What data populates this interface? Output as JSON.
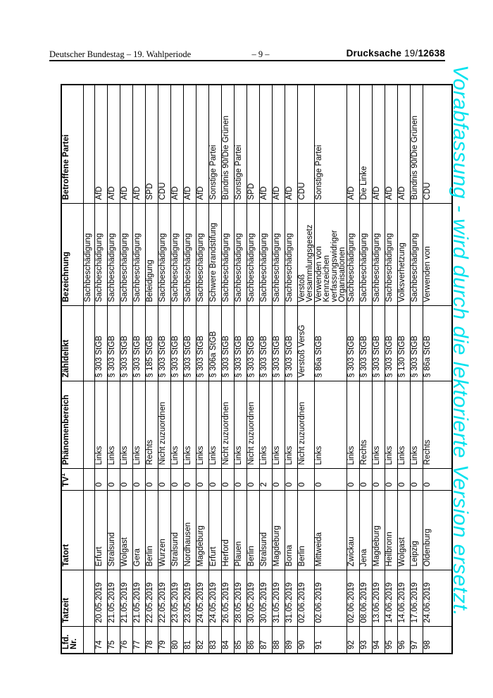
{
  "page_header": {
    "left": "Deutscher Bundestag – 19. Wahlperiode",
    "center": "– 9 –",
    "right_label": "Drucksache",
    "right_prefix": "19/",
    "right_number": "12638"
  },
  "watermark": {
    "text": "Vorabfassung - wird durch die lektorierte Version ersetzt.",
    "color": "#00e2ee"
  },
  "table": {
    "headers": {
      "nr": "Lfd.\nNr.",
      "tatzeit": "Tatzeit",
      "tatort": "Tatort",
      "tv": "TV",
      "tv_sup": "1",
      "phaenomenbereich": "Phänomenbereich",
      "zaehldelikt": "Zähldelikt",
      "bezeichnung": "Bezeichnung",
      "partei": "Betroffene Partei"
    },
    "rows": [
      {
        "nr": "",
        "tatzeit": "",
        "tatort": "",
        "tv": "",
        "phaenomenbereich": "",
        "zaehldelikt": "",
        "bezeichnung": "Sachbeschädigung",
        "partei": ""
      },
      {
        "nr": "74",
        "tatzeit": "20.05.2019",
        "tatort": "Erfurt",
        "tv": "0",
        "phaenomenbereich": "Links",
        "zaehldelikt": "§ 303 StGB",
        "bezeichnung": "Sachbeschädigung",
        "partei": "AfD"
      },
      {
        "nr": "75",
        "tatzeit": "21.05.2019",
        "tatort": "Stralsund",
        "tv": "0",
        "phaenomenbereich": "Links",
        "zaehldelikt": "§ 303 StGB",
        "bezeichnung": "Sachbeschädigung",
        "partei": "AfD"
      },
      {
        "nr": "76",
        "tatzeit": "21.05.2019",
        "tatort": "Wolgast",
        "tv": "0",
        "phaenomenbereich": "Links",
        "zaehldelikt": "§ 303 StGB",
        "bezeichnung": "Sachbeschädigung",
        "partei": "AfD"
      },
      {
        "nr": "77",
        "tatzeit": "21.05.2019",
        "tatort": "Gera",
        "tv": "0",
        "phaenomenbereich": "Links",
        "zaehldelikt": "§ 303 StGB",
        "bezeichnung": "Sachbeschädigung",
        "partei": "AfD"
      },
      {
        "nr": "78",
        "tatzeit": "22.05.2019",
        "tatort": "Berlin",
        "tv": "0",
        "phaenomenbereich": "Rechts",
        "zaehldelikt": "§ 185 StGB",
        "bezeichnung": "Beleidigung",
        "partei": "SPD"
      },
      {
        "nr": "79",
        "tatzeit": "22.05.2019",
        "tatort": "Wurzen",
        "tv": "0",
        "phaenomenbereich": "Nicht zuzuordnen",
        "zaehldelikt": "§ 303 StGB",
        "bezeichnung": "Sachbeschädigung",
        "partei": "CDU"
      },
      {
        "nr": "80",
        "tatzeit": "23.05.2019",
        "tatort": "Stralsund",
        "tv": "0",
        "phaenomenbereich": "Links",
        "zaehldelikt": "§ 303 StGB",
        "bezeichnung": "Sachbeschädigung",
        "partei": "AfD"
      },
      {
        "nr": "81",
        "tatzeit": "23.05.2019",
        "tatort": "Nordhausen",
        "tv": "0",
        "phaenomenbereich": "Links",
        "zaehldelikt": "§ 303 StGB",
        "bezeichnung": "Sachbeschädigung",
        "partei": "AfD"
      },
      {
        "nr": "82",
        "tatzeit": "24.05.2019",
        "tatort": "Magdeburg",
        "tv": "0",
        "phaenomenbereich": "Links",
        "zaehldelikt": "§ 303 StGB",
        "bezeichnung": "Sachbeschädigung",
        "partei": "AfD"
      },
      {
        "nr": "83",
        "tatzeit": "24.05.2019",
        "tatort": "Erfurt",
        "tv": "0",
        "phaenomenbereich": "Links",
        "zaehldelikt": "§ 306a StGB",
        "bezeichnung": "Schwere Brandstifung",
        "partei": "Sonstige Partei"
      },
      {
        "nr": "84",
        "tatzeit": "26.05.2019",
        "tatort": "Herford",
        "tv": "0",
        "phaenomenbereich": "Nicht zuzuordnen",
        "zaehldelikt": "§ 303 StGB",
        "bezeichnung": "Sachbeschädigung",
        "partei": "Bündnis 90/Die Grünen"
      },
      {
        "nr": "85",
        "tatzeit": "28.05.2019",
        "tatort": "Plauen",
        "tv": "0",
        "phaenomenbereich": "Links",
        "zaehldelikt": "§ 303 StGB",
        "bezeichnung": "Sachbeschädigung",
        "partei": "Sonstige Partei"
      },
      {
        "nr": "86",
        "tatzeit": "30.05.2019",
        "tatort": "Berlin",
        "tv": "0",
        "phaenomenbereich": "Nicht zuzuordnen",
        "zaehldelikt": "§ 303 StGB",
        "bezeichnung": "Sachbeschädigung",
        "partei": "SPD"
      },
      {
        "nr": "87",
        "tatzeit": "30.05.2019",
        "tatort": "Stralsund",
        "tv": "2",
        "phaenomenbereich": "Links",
        "zaehldelikt": "§ 303 StGB",
        "bezeichnung": "Sachbeschädigung",
        "partei": "AfD"
      },
      {
        "nr": "88",
        "tatzeit": "31.05.2019",
        "tatort": "Magdeburg",
        "tv": "0",
        "phaenomenbereich": "Links",
        "zaehldelikt": "§ 303 StGB",
        "bezeichnung": "Sachbeschädigung",
        "partei": "AfD"
      },
      {
        "nr": "89",
        "tatzeit": "31.05.2019",
        "tatort": "Borna",
        "tv": "0",
        "phaenomenbereich": "Links",
        "zaehldelikt": "§ 303 StGB",
        "bezeichnung": "Sachbeschädigung",
        "partei": "AfD"
      },
      {
        "nr": "90",
        "tatzeit": "02.06.2019",
        "tatort": "Berlin",
        "tv": "0",
        "phaenomenbereich": "Nicht zuzuordnen",
        "zaehldelikt": "Verstoß VersG",
        "bezeichnung": "Verstoß\nVersammlungsgesetz",
        "partei": "CDU"
      },
      {
        "nr": "91",
        "tatzeit": "02.06.2019",
        "tatort": "Mittweida",
        "tv": "0",
        "phaenomenbereich": "Links",
        "zaehldelikt": "§ 86a StGB",
        "bezeichnung": "Verwenden von\nKennzeichen\nverfassungswidriger\nOrganisationen",
        "partei": "Sonstige Partei"
      },
      {
        "nr": "92",
        "tatzeit": "02.06.2019",
        "tatort": "Zwickau",
        "tv": "0",
        "phaenomenbereich": "Links",
        "zaehldelikt": "§ 303 StGB",
        "bezeichnung": "Sachbeschädigung",
        "partei": "AfD"
      },
      {
        "nr": "93",
        "tatzeit": "08.06.2019",
        "tatort": "Jena",
        "tv": "0",
        "phaenomenbereich": "Rechts",
        "zaehldelikt": "§ 303 StGB",
        "bezeichnung": "Sachbeschädigung",
        "partei": "Die Linke"
      },
      {
        "nr": "94",
        "tatzeit": "13.06.2019",
        "tatort": "Magdeburg",
        "tv": "0",
        "phaenomenbereich": "Links",
        "zaehldelikt": "§ 303 StGB",
        "bezeichnung": "Sachbeschädigung",
        "partei": "AfD"
      },
      {
        "nr": "95",
        "tatzeit": "14.06.2019",
        "tatort": "Heilbronn",
        "tv": "0",
        "phaenomenbereich": "Links",
        "zaehldelikt": "§ 303 StGB",
        "bezeichnung": "Sachbeschädigung",
        "partei": "AfD"
      },
      {
        "nr": "96",
        "tatzeit": "14.06.2019",
        "tatort": "Wolgast",
        "tv": "0",
        "phaenomenbereich": "Links",
        "zaehldelikt": "§ 130 StGB",
        "bezeichnung": "Volksverhetzung",
        "partei": "AfD"
      },
      {
        "nr": "97",
        "tatzeit": "17.06.2019",
        "tatort": "Leipzig",
        "tv": "0",
        "phaenomenbereich": "Links",
        "zaehldelikt": "§ 303 StGB",
        "bezeichnung": "Sachbeschädigung",
        "partei": "Bündnis 90/Die Grünen"
      },
      {
        "nr": "98",
        "tatzeit": "24.06.2019",
        "tatort": "Oldenburg",
        "tv": "0",
        "phaenomenbereich": "Rechts",
        "zaehldelikt": "§ 86a StGB",
        "bezeichnung": "Verwenden von",
        "partei": "CDU"
      }
    ]
  }
}
